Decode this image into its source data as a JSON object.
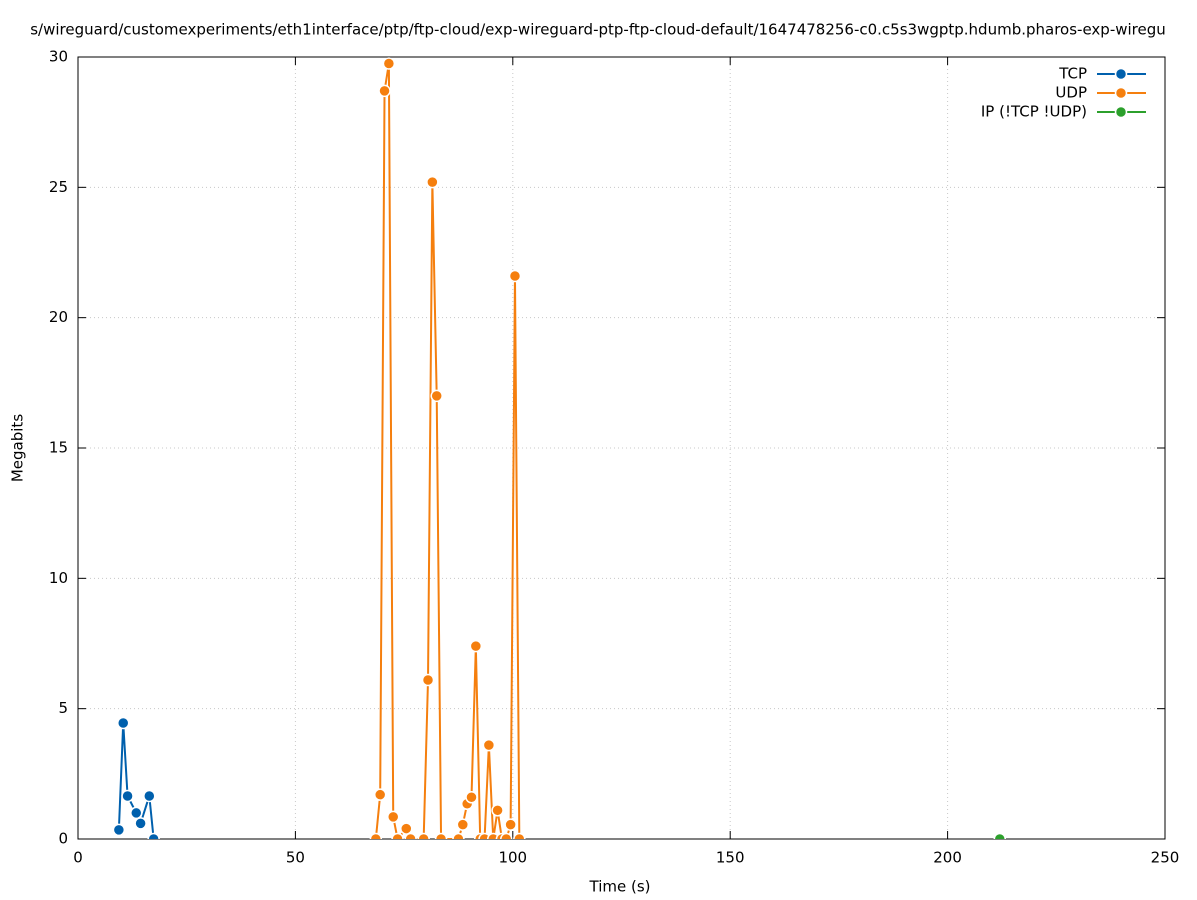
{
  "chart_data": {
    "type": "line",
    "title": "s/wireguard/customexperiments/eth1interface/ptp/ftp-cloud/exp-wireguard-ptp-ftp-cloud-default/1647478256-c0.c5s3wgptp.hdumb.pharos-exp-wiregu",
    "x_label": "Time (s)",
    "y_label": "Megabits",
    "xlim": [
      0,
      250
    ],
    "xticks": [
      0,
      50,
      100,
      150,
      200,
      250
    ],
    "ylim": [
      0,
      30
    ],
    "yticks": [
      0,
      5,
      10,
      15,
      20,
      25,
      30
    ],
    "grid": true,
    "legend": "top-right",
    "series": [
      {
        "name": "TCP",
        "color": "#0060ad",
        "x": [
          9.4,
          10.4,
          11.4,
          13.4,
          14.4,
          16.4,
          17.4
        ],
        "values": [
          0.35,
          4.45,
          1.65,
          1.0,
          0.6,
          1.65,
          0
        ]
      },
      {
        "name": "UDP",
        "color": "#f57f0e",
        "x": [
          68.5,
          69.5,
          70.5,
          71.5,
          72.5,
          73.5,
          75.5,
          76.5,
          79.5,
          80.5,
          81.5,
          82.5,
          83.5,
          87.5,
          88.5,
          89.5,
          90.5,
          91.5,
          92.5,
          93.5,
          94.5,
          95.5,
          96.5,
          97.5,
          98.5,
          99.5,
          100.5,
          101.5
        ],
        "values": [
          0,
          1.7,
          28.7,
          29.75,
          0.85,
          0,
          0.4,
          0,
          0,
          6.1,
          25.2,
          17.0,
          0,
          0,
          0.55,
          1.35,
          1.6,
          7.4,
          0,
          0,
          3.6,
          0,
          1.1,
          0,
          0,
          0.55,
          21.6,
          0
        ]
      },
      {
        "name": "IP (!TCP  !UDP)",
        "color": "#2ca02c",
        "x": [
          212.0
        ],
        "values": [
          0
        ]
      }
    ]
  }
}
